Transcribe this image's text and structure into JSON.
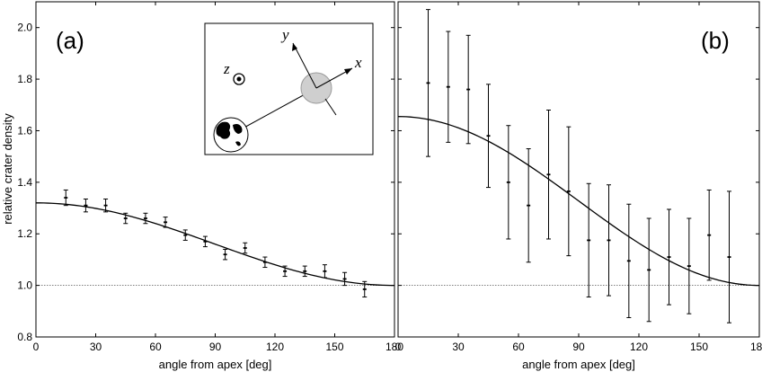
{
  "chart_data": [
    {
      "type": "line",
      "panel_label": "(a)",
      "xlabel": "angle from apex [deg]",
      "ylabel": "relative crater density",
      "xlim": [
        0,
        180
      ],
      "ylim": [
        0.8,
        2.1
      ],
      "xticks": [
        0,
        30,
        60,
        90,
        120,
        150,
        180
      ],
      "yticks": [
        0.8,
        1.0,
        1.2,
        1.4,
        1.6,
        1.8,
        2.0
      ],
      "ytick_labels": [
        "0.8",
        "1.0",
        "1.2",
        "1.4",
        "1.6",
        "1.8",
        "2.0"
      ],
      "reference_line": 1.0,
      "fit_curve": {
        "peak": 1.32,
        "baseline": 1.0
      },
      "points": [
        {
          "x": 15,
          "y": 1.34,
          "err": 0.03
        },
        {
          "x": 25,
          "y": 1.31,
          "err": 0.025
        },
        {
          "x": 35,
          "y": 1.31,
          "err": 0.025
        },
        {
          "x": 45,
          "y": 1.26,
          "err": 0.02
        },
        {
          "x": 55,
          "y": 1.26,
          "err": 0.02
        },
        {
          "x": 65,
          "y": 1.245,
          "err": 0.02
        },
        {
          "x": 75,
          "y": 1.195,
          "err": 0.02
        },
        {
          "x": 85,
          "y": 1.17,
          "err": 0.02
        },
        {
          "x": 95,
          "y": 1.12,
          "err": 0.02
        },
        {
          "x": 105,
          "y": 1.145,
          "err": 0.02
        },
        {
          "x": 115,
          "y": 1.09,
          "err": 0.02
        },
        {
          "x": 125,
          "y": 1.055,
          "err": 0.02
        },
        {
          "x": 135,
          "y": 1.055,
          "err": 0.02
        },
        {
          "x": 145,
          "y": 1.055,
          "err": 0.025
        },
        {
          "x": 155,
          "y": 1.025,
          "err": 0.025
        },
        {
          "x": 165,
          "y": 0.985,
          "err": 0.03
        }
      ],
      "inset": {
        "axis_x": "x",
        "axis_y": "y",
        "axis_z": "z"
      }
    },
    {
      "type": "line",
      "panel_label": "(b)",
      "xlabel": "angle from apex [deg]",
      "xlim": [
        0,
        180
      ],
      "ylim": [
        0.8,
        2.1
      ],
      "xticks": [
        0,
        30,
        60,
        90,
        120,
        150,
        180
      ],
      "reference_line": 1.0,
      "fit_curve": {
        "peak": 1.655,
        "baseline": 1.0
      },
      "points": [
        {
          "x": 15,
          "y": 1.785,
          "err": 0.285
        },
        {
          "x": 25,
          "y": 1.77,
          "err": 0.215
        },
        {
          "x": 35,
          "y": 1.76,
          "err": 0.21
        },
        {
          "x": 45,
          "y": 1.58,
          "err": 0.2
        },
        {
          "x": 55,
          "y": 1.4,
          "err": 0.22
        },
        {
          "x": 65,
          "y": 1.31,
          "err": 0.22
        },
        {
          "x": 75,
          "y": 1.43,
          "err": 0.25
        },
        {
          "x": 85,
          "y": 1.365,
          "err": 0.25
        },
        {
          "x": 95,
          "y": 1.175,
          "err": 0.22
        },
        {
          "x": 105,
          "y": 1.175,
          "err": 0.215
        },
        {
          "x": 115,
          "y": 1.095,
          "err": 0.22
        },
        {
          "x": 125,
          "y": 1.06,
          "err": 0.2
        },
        {
          "x": 135,
          "y": 1.11,
          "err": 0.185
        },
        {
          "x": 145,
          "y": 1.075,
          "err": 0.185
        },
        {
          "x": 155,
          "y": 1.195,
          "err": 0.175
        },
        {
          "x": 165,
          "y": 1.11,
          "err": 0.255
        }
      ]
    }
  ]
}
